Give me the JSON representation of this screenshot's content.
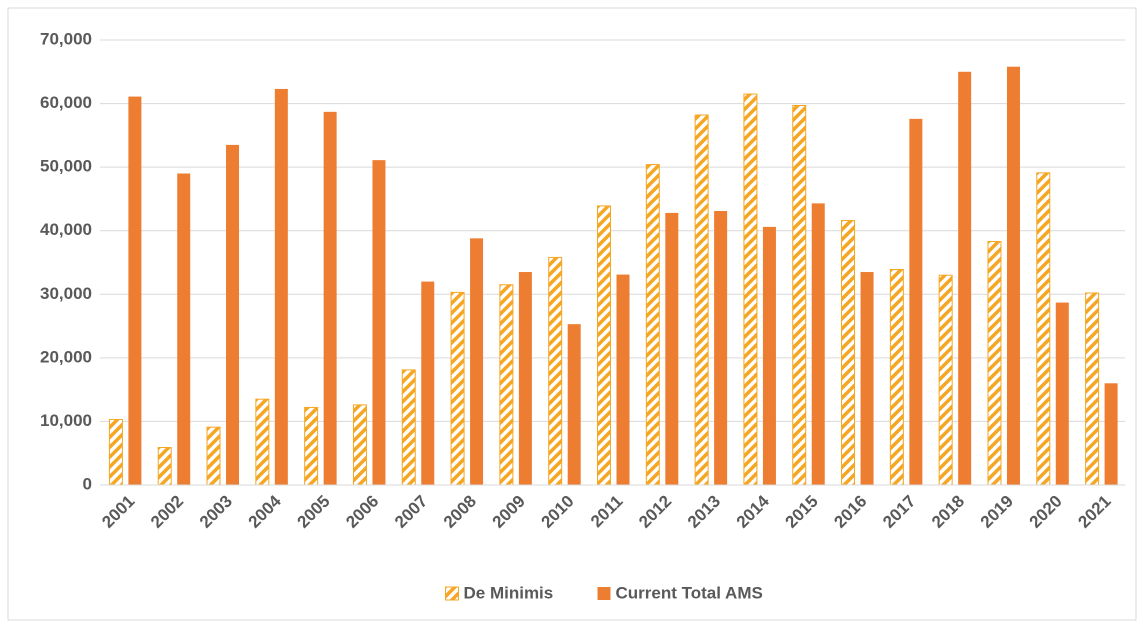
{
  "chart_data": {
    "type": "bar",
    "categories": [
      "2001",
      "2002",
      "2003",
      "2004",
      "2005",
      "2006",
      "2007",
      "2008",
      "2009",
      "2010",
      "2011",
      "2012",
      "2013",
      "2014",
      "2015",
      "2016",
      "2017",
      "2018",
      "2019",
      "2020",
      "2021"
    ],
    "series": [
      {
        "name": "De Minimis",
        "color": "#f5a623",
        "pattern": "hatch",
        "values": [
          10300,
          5900,
          9100,
          13500,
          12200,
          12600,
          18100,
          30300,
          31500,
          35800,
          43900,
          50400,
          58200,
          61500,
          59700,
          41600,
          33900,
          33000,
          38300,
          49100,
          30200
        ]
      },
      {
        "name": "Current Total AMS",
        "color": "#ed7d31",
        "pattern": "solid",
        "values": [
          61100,
          49000,
          53500,
          62300,
          58700,
          51100,
          32000,
          38800,
          33500,
          25300,
          33100,
          42800,
          43100,
          40600,
          44300,
          33500,
          57600,
          65000,
          65800,
          28700,
          16000
        ]
      }
    ],
    "ylim": [
      0,
      70000
    ],
    "yticks": [
      0,
      {
        "value": 10000,
        "label": "10,000"
      },
      {
        "value": 20000,
        "label": "20,000"
      },
      {
        "value": 30000,
        "label": "30,000"
      },
      {
        "value": 40000,
        "label": "40,000"
      },
      {
        "value": 50000,
        "label": "50,000"
      },
      {
        "value": 60000,
        "label": "60,000"
      },
      {
        "value": 70000,
        "label": "70,000"
      }
    ],
    "grid": true,
    "legend": "bottom"
  }
}
